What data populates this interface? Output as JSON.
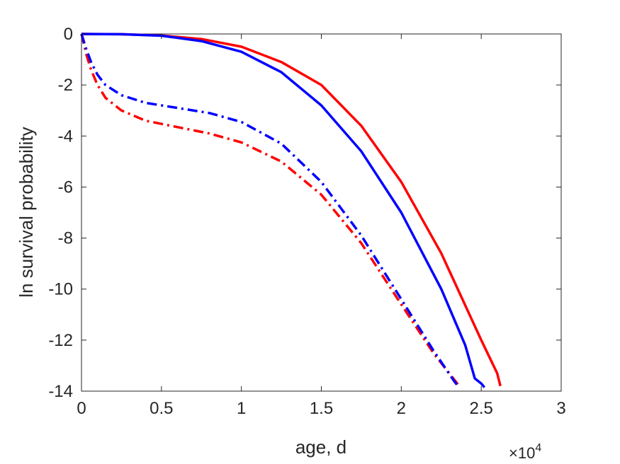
{
  "chart_data": {
    "type": "line",
    "title": "",
    "xlabel": "age, d",
    "ylabel": "ln survival probability",
    "x_multiplier_base": "×10",
    "x_multiplier_exp": "4",
    "xlim": [
      0,
      3
    ],
    "ylim": [
      -14,
      0
    ],
    "xticks": [
      0,
      0.5,
      1,
      1.5,
      2,
      2.5,
      3
    ],
    "xtick_labels": [
      "0",
      "0.5",
      "1",
      "1.5",
      "2",
      "2.5",
      "3"
    ],
    "yticks": [
      0,
      -2,
      -4,
      -6,
      -8,
      -10,
      -12,
      -14
    ],
    "ytick_labels": [
      "0",
      "-2",
      "-4",
      "-6",
      "-8",
      "-10",
      "-12",
      "-14"
    ],
    "grid": false,
    "series": [
      {
        "color": "#ff0000",
        "style": "solid",
        "x": [
          0,
          0.25,
          0.5,
          0.75,
          1.0,
          1.25,
          1.5,
          1.75,
          2.0,
          2.25,
          2.5,
          2.6,
          2.62
        ],
        "y": [
          0,
          -0.01,
          -0.06,
          -0.2,
          -0.5,
          -1.1,
          -2.0,
          -3.6,
          -5.8,
          -8.6,
          -12.0,
          -13.3,
          -13.8
        ]
      },
      {
        "color": "#0000ff",
        "style": "solid",
        "x": [
          0,
          0.25,
          0.5,
          0.75,
          1.0,
          1.25,
          1.5,
          1.75,
          2.0,
          2.25,
          2.4,
          2.46,
          2.5,
          2.52
        ],
        "y": [
          0,
          -0.01,
          -0.07,
          -0.28,
          -0.7,
          -1.5,
          -2.8,
          -4.6,
          -7.0,
          -10.0,
          -12.2,
          -13.5,
          -13.7,
          -13.85
        ]
      },
      {
        "color": "#ff0000",
        "style": "dashdot",
        "x": [
          0,
          0.03,
          0.06,
          0.1,
          0.15,
          0.25,
          0.4,
          0.6,
          0.8,
          1.0,
          1.25,
          1.5,
          1.75,
          2.0,
          2.2,
          2.35,
          2.37
        ],
        "y": [
          0,
          -0.8,
          -1.4,
          -2.0,
          -2.5,
          -3.0,
          -3.4,
          -3.65,
          -3.9,
          -4.25,
          -5.0,
          -6.3,
          -8.2,
          -10.6,
          -12.5,
          -13.7,
          -13.85
        ]
      },
      {
        "color": "#0000ff",
        "style": "dashdot",
        "x": [
          0,
          0.03,
          0.06,
          0.1,
          0.15,
          0.25,
          0.4,
          0.6,
          0.8,
          1.0,
          1.25,
          1.5,
          1.75,
          2.0,
          2.2,
          2.33,
          2.36
        ],
        "y": [
          0,
          -0.6,
          -1.1,
          -1.6,
          -2.0,
          -2.4,
          -2.7,
          -2.9,
          -3.1,
          -3.45,
          -4.3,
          -5.8,
          -7.9,
          -10.4,
          -12.4,
          -13.6,
          -13.85
        ]
      }
    ]
  }
}
